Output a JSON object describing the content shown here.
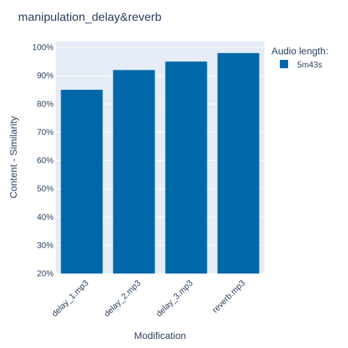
{
  "chart_data": {
    "type": "bar",
    "title": "manipulation_delay&reverb",
    "categories": [
      "delay_1.mp3",
      "delay_2.mp3",
      "delay_3.mp3",
      "reverb.mp3"
    ],
    "series": [
      {
        "name": "5m43s",
        "values": [
          0.85,
          0.92,
          0.95,
          0.98
        ]
      }
    ],
    "xlabel": "Modification",
    "ylabel": "Content - Similarity",
    "ylim": [
      0.2,
      1.02
    ],
    "yticks": [
      0.2,
      0.3,
      0.4,
      0.5,
      0.6,
      0.7,
      0.8,
      0.9,
      1.0
    ],
    "ytick_labels": [
      "20%",
      "30%",
      "40%",
      "50%",
      "60%",
      "70%",
      "80%",
      "90%",
      "100%"
    ],
    "grid": true,
    "legend_title": "Audio length:",
    "legend_position": "top-right",
    "colors": {
      "plot_bg": "#e5ecf6",
      "bar": "#0068a9",
      "grid": "#ffffff",
      "text": "#2a3f5f"
    }
  }
}
